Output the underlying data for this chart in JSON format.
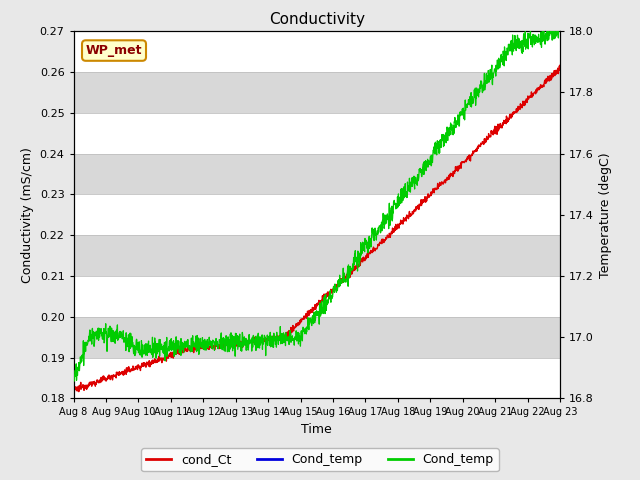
{
  "title": "Conductivity",
  "xlabel": "Time",
  "ylabel_left": "Conductivity (mS/cm)",
  "ylabel_right": "Temperature (degC)",
  "ylim_left": [
    0.18,
    0.27
  ],
  "ylim_right": [
    16.8,
    18.0
  ],
  "yticks_left": [
    0.18,
    0.19,
    0.2,
    0.21,
    0.22,
    0.23,
    0.24,
    0.25,
    0.26,
    0.27
  ],
  "yticks_right": [
    16.8,
    17.0,
    17.2,
    17.4,
    17.6,
    17.8,
    18.0
  ],
  "xlim": [
    0,
    15
  ],
  "xtick_labels": [
    "Aug 8",
    "Aug 9",
    "Aug 10",
    "Aug 11",
    "Aug 12",
    "Aug 13",
    "Aug 14",
    "Aug 15",
    "Aug 16",
    "Aug 17",
    "Aug 18",
    "Aug 19",
    "Aug 20",
    "Aug 21",
    "Aug 22",
    "Aug 23"
  ],
  "box_label": "WP_met",
  "legend": [
    {
      "label": "cond_Ct",
      "color": "#dd0000"
    },
    {
      "label": "Cond_temp",
      "color": "#0000dd"
    },
    {
      "label": "Cond_temp",
      "color": "#00cc00"
    }
  ],
  "bg_color": "#e8e8e8",
  "band_colors": [
    "#ffffff",
    "#d8d8d8"
  ],
  "grid_color": "#c0c0c0"
}
